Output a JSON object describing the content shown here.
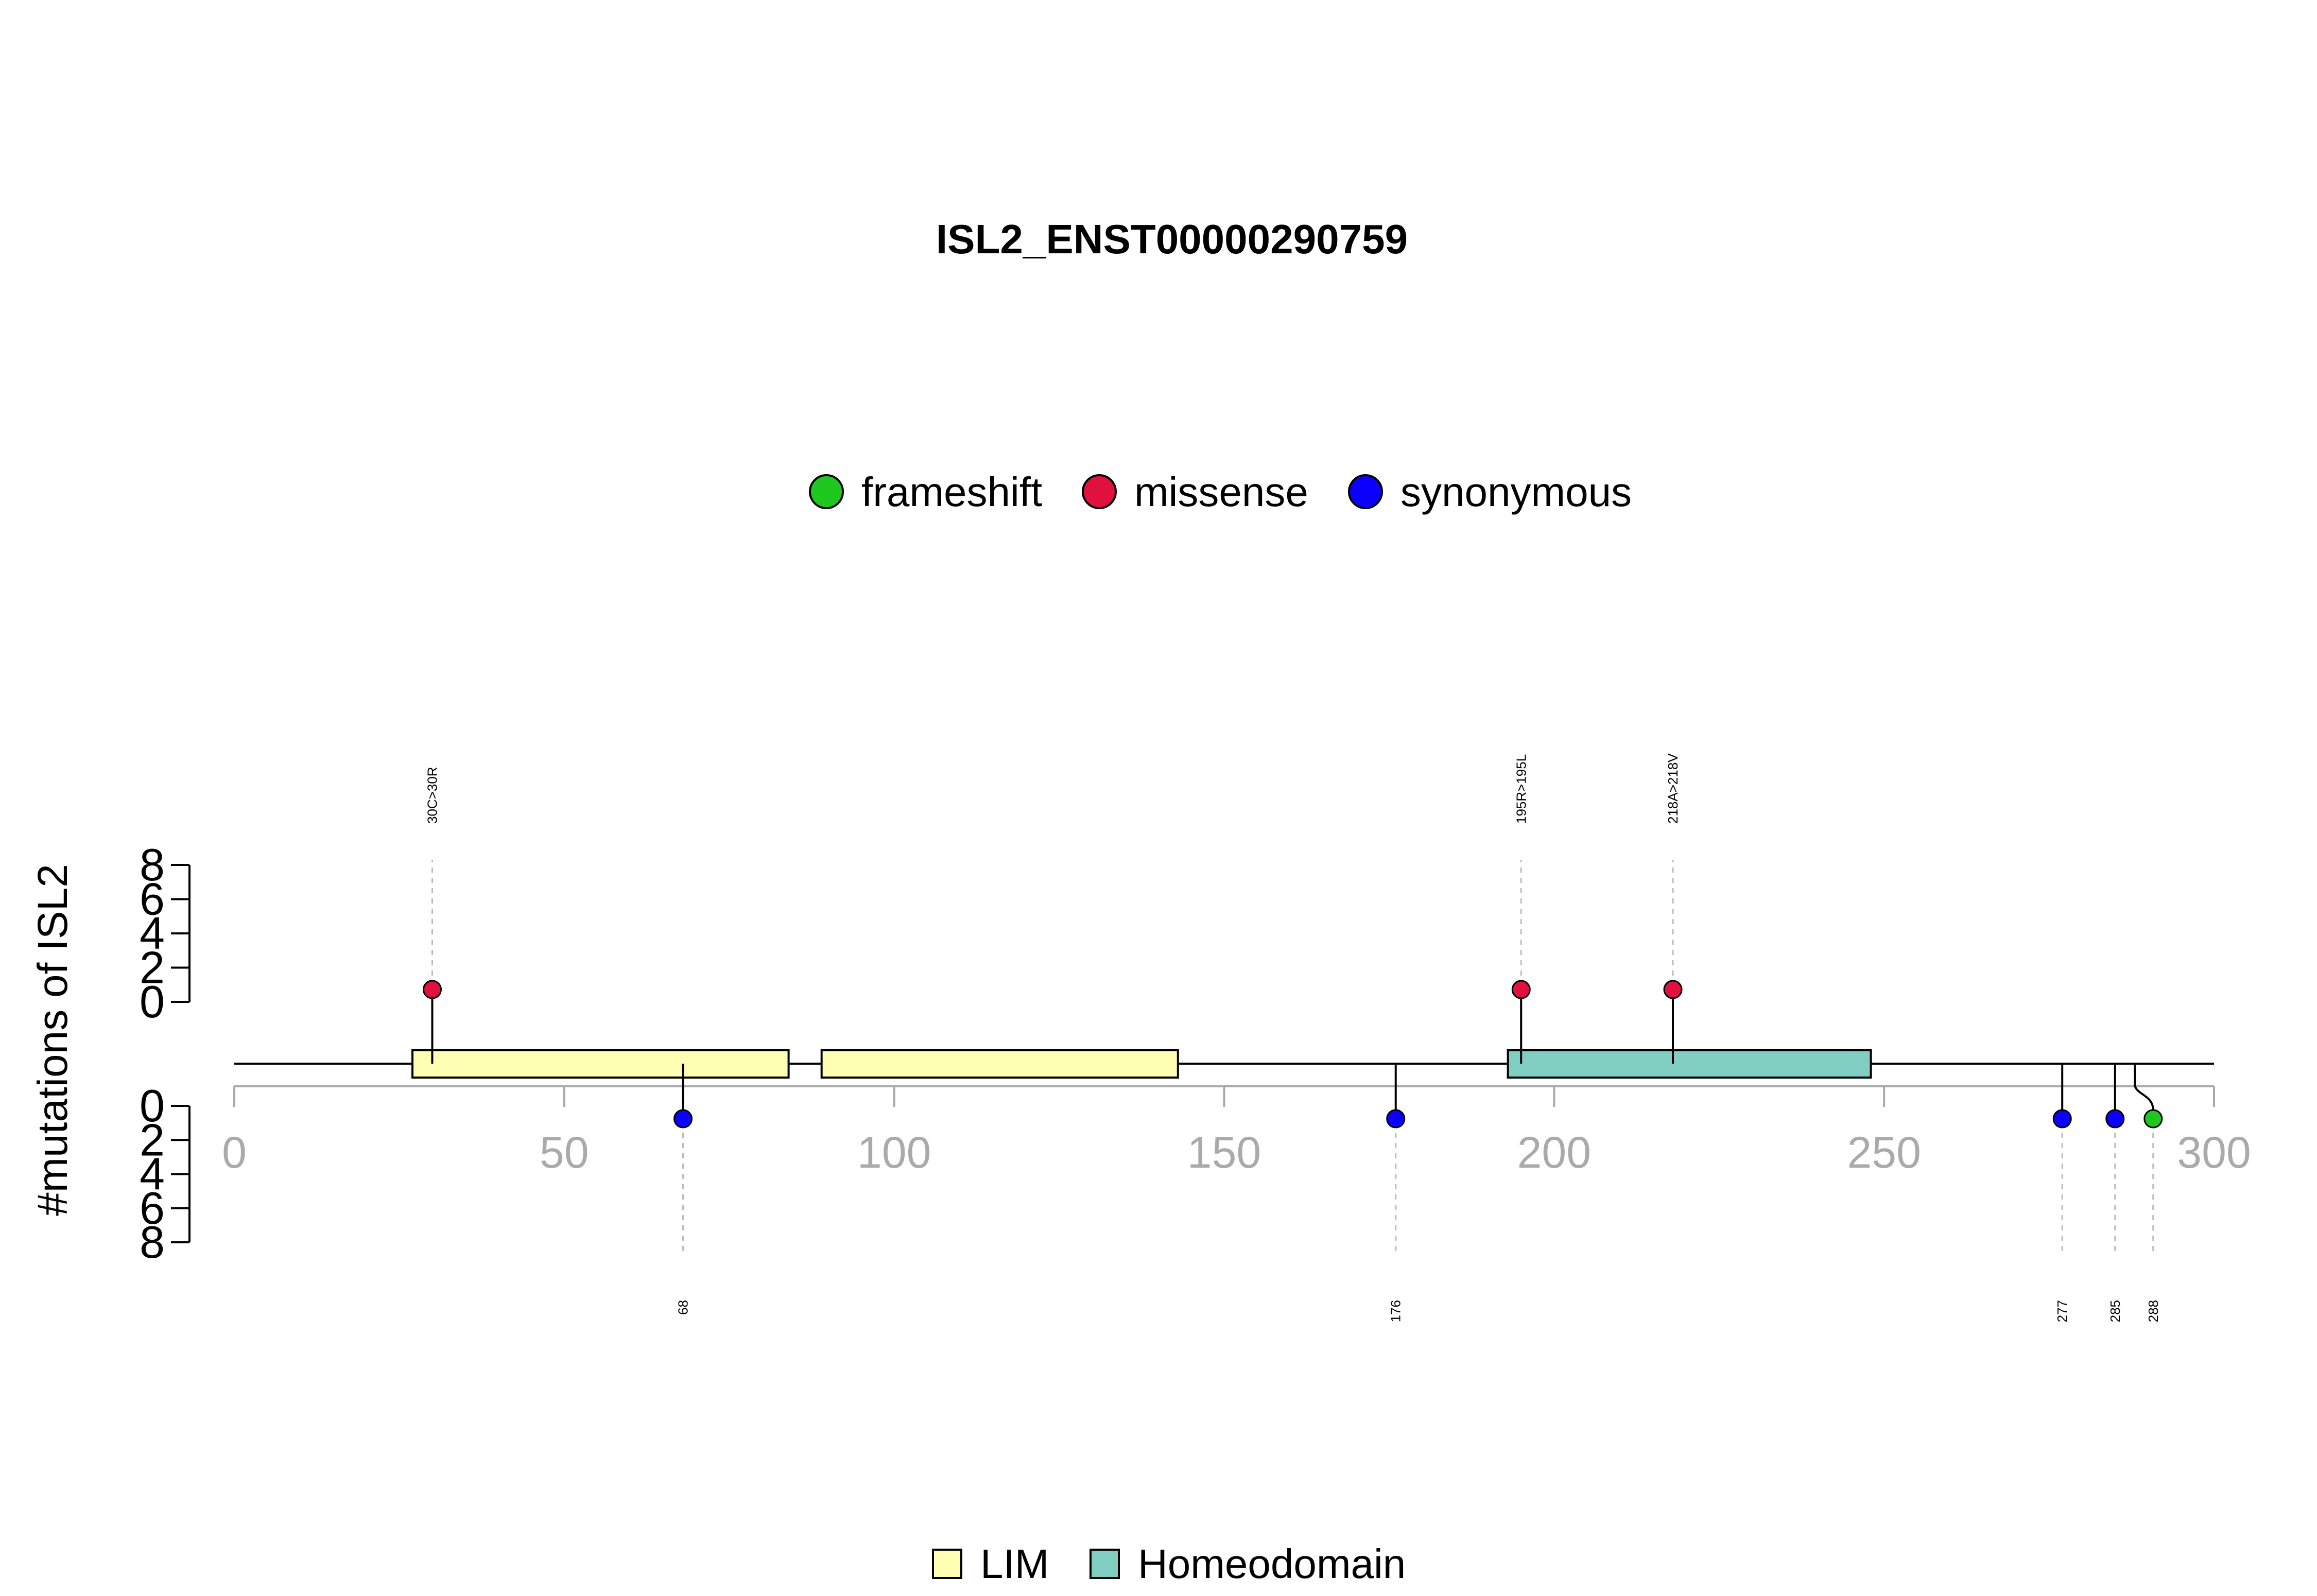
{
  "chart_data": {
    "type": "lollipop",
    "title": "ISL2_ENST00000290759",
    "ylabel": "#mutations of ISL2",
    "xlim": [
      0,
      300
    ],
    "x_ticks": [
      0,
      50,
      100,
      150,
      200,
      250,
      300
    ],
    "y_ticks": [
      0,
      2,
      4,
      6,
      8
    ],
    "ylim": [
      0,
      8
    ],
    "mutation_types": [
      {
        "name": "frameshift",
        "color": "#1ec81e"
      },
      {
        "name": "missense",
        "color": "#e0113f"
      },
      {
        "name": "synonymous",
        "color": "#0b00ff"
      }
    ],
    "domains": [
      {
        "name": "LIM",
        "start": 27,
        "end": 84,
        "color": "#ffffb3"
      },
      {
        "name": "LIM",
        "start": 89,
        "end": 143,
        "color": "#ffffb3"
      },
      {
        "name": "Homeodomain",
        "start": 193,
        "end": 248,
        "color": "#80cdc1"
      }
    ],
    "domain_legend": [
      {
        "name": "LIM",
        "color": "#ffffb3"
      },
      {
        "name": "Homeodomain",
        "color": "#80cdc1"
      }
    ],
    "mutations": [
      {
        "position": 30,
        "count": 1,
        "type": "missense",
        "label": "30C>30R",
        "side": "top"
      },
      {
        "position": 195,
        "count": 1,
        "type": "missense",
        "label": "195R>195L",
        "side": "top"
      },
      {
        "position": 218,
        "count": 1,
        "type": "missense",
        "label": "218A>218V",
        "side": "top"
      },
      {
        "position": 68,
        "count": 1,
        "type": "synonymous",
        "label": "68",
        "side": "bottom"
      },
      {
        "position": 176,
        "count": 1,
        "type": "synonymous",
        "label": "176",
        "side": "bottom"
      },
      {
        "position": 277,
        "count": 1,
        "type": "synonymous",
        "label": "277",
        "side": "bottom"
      },
      {
        "position": 285,
        "count": 1,
        "type": "synonymous",
        "label": "285",
        "side": "bottom"
      },
      {
        "position": 288,
        "count": 1,
        "type": "frameshift",
        "label": "288",
        "side": "bottom"
      }
    ]
  }
}
